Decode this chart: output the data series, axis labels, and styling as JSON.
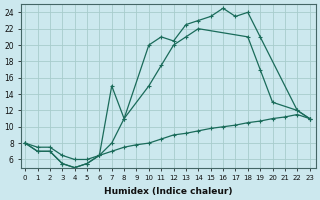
{
  "xlabel": "Humidex (Indice chaleur)",
  "background_color": "#cce8ee",
  "grid_color": "#a8cccc",
  "line_color": "#1a6b5a",
  "series": [
    {
      "x": [
        0,
        1,
        2,
        3,
        4,
        5,
        6,
        7,
        8,
        10,
        11,
        12,
        13,
        14,
        15,
        16,
        17,
        18,
        19,
        22,
        23
      ],
      "y": [
        8,
        7,
        7,
        5.5,
        5,
        5.5,
        6.5,
        15,
        11,
        20,
        21,
        20.5,
        22.5,
        23,
        23.5,
        24.5,
        23.5,
        24,
        21,
        12,
        11
      ]
    },
    {
      "x": [
        0,
        1,
        2,
        3,
        4,
        5,
        6,
        7,
        8,
        10,
        11,
        12,
        13,
        14,
        18,
        19,
        20,
        22,
        23
      ],
      "y": [
        8,
        7,
        7,
        5.5,
        5,
        5.5,
        6.5,
        8,
        11,
        15,
        17.5,
        20,
        21,
        22,
        21,
        17,
        13,
        12,
        11
      ]
    },
    {
      "x": [
        0,
        1,
        2,
        3,
        4,
        5,
        6,
        7,
        8,
        9,
        10,
        11,
        12,
        13,
        14,
        15,
        16,
        17,
        18,
        19,
        20,
        21,
        22,
        23
      ],
      "y": [
        8,
        7.5,
        7.5,
        6.5,
        6,
        6,
        6.5,
        7,
        7.5,
        7.8,
        8,
        8.5,
        9,
        9.2,
        9.5,
        9.8,
        10,
        10.2,
        10.5,
        10.7,
        11,
        11.2,
        11.5,
        11
      ]
    }
  ],
  "xlim": [
    -0.3,
    23.5
  ],
  "ylim": [
    5,
    25
  ],
  "yticks": [
    6,
    8,
    10,
    12,
    14,
    16,
    18,
    20,
    22,
    24
  ],
  "xticks": [
    0,
    1,
    2,
    3,
    4,
    5,
    6,
    7,
    8,
    9,
    10,
    11,
    12,
    13,
    14,
    15,
    16,
    17,
    18,
    19,
    20,
    21,
    22,
    23
  ]
}
